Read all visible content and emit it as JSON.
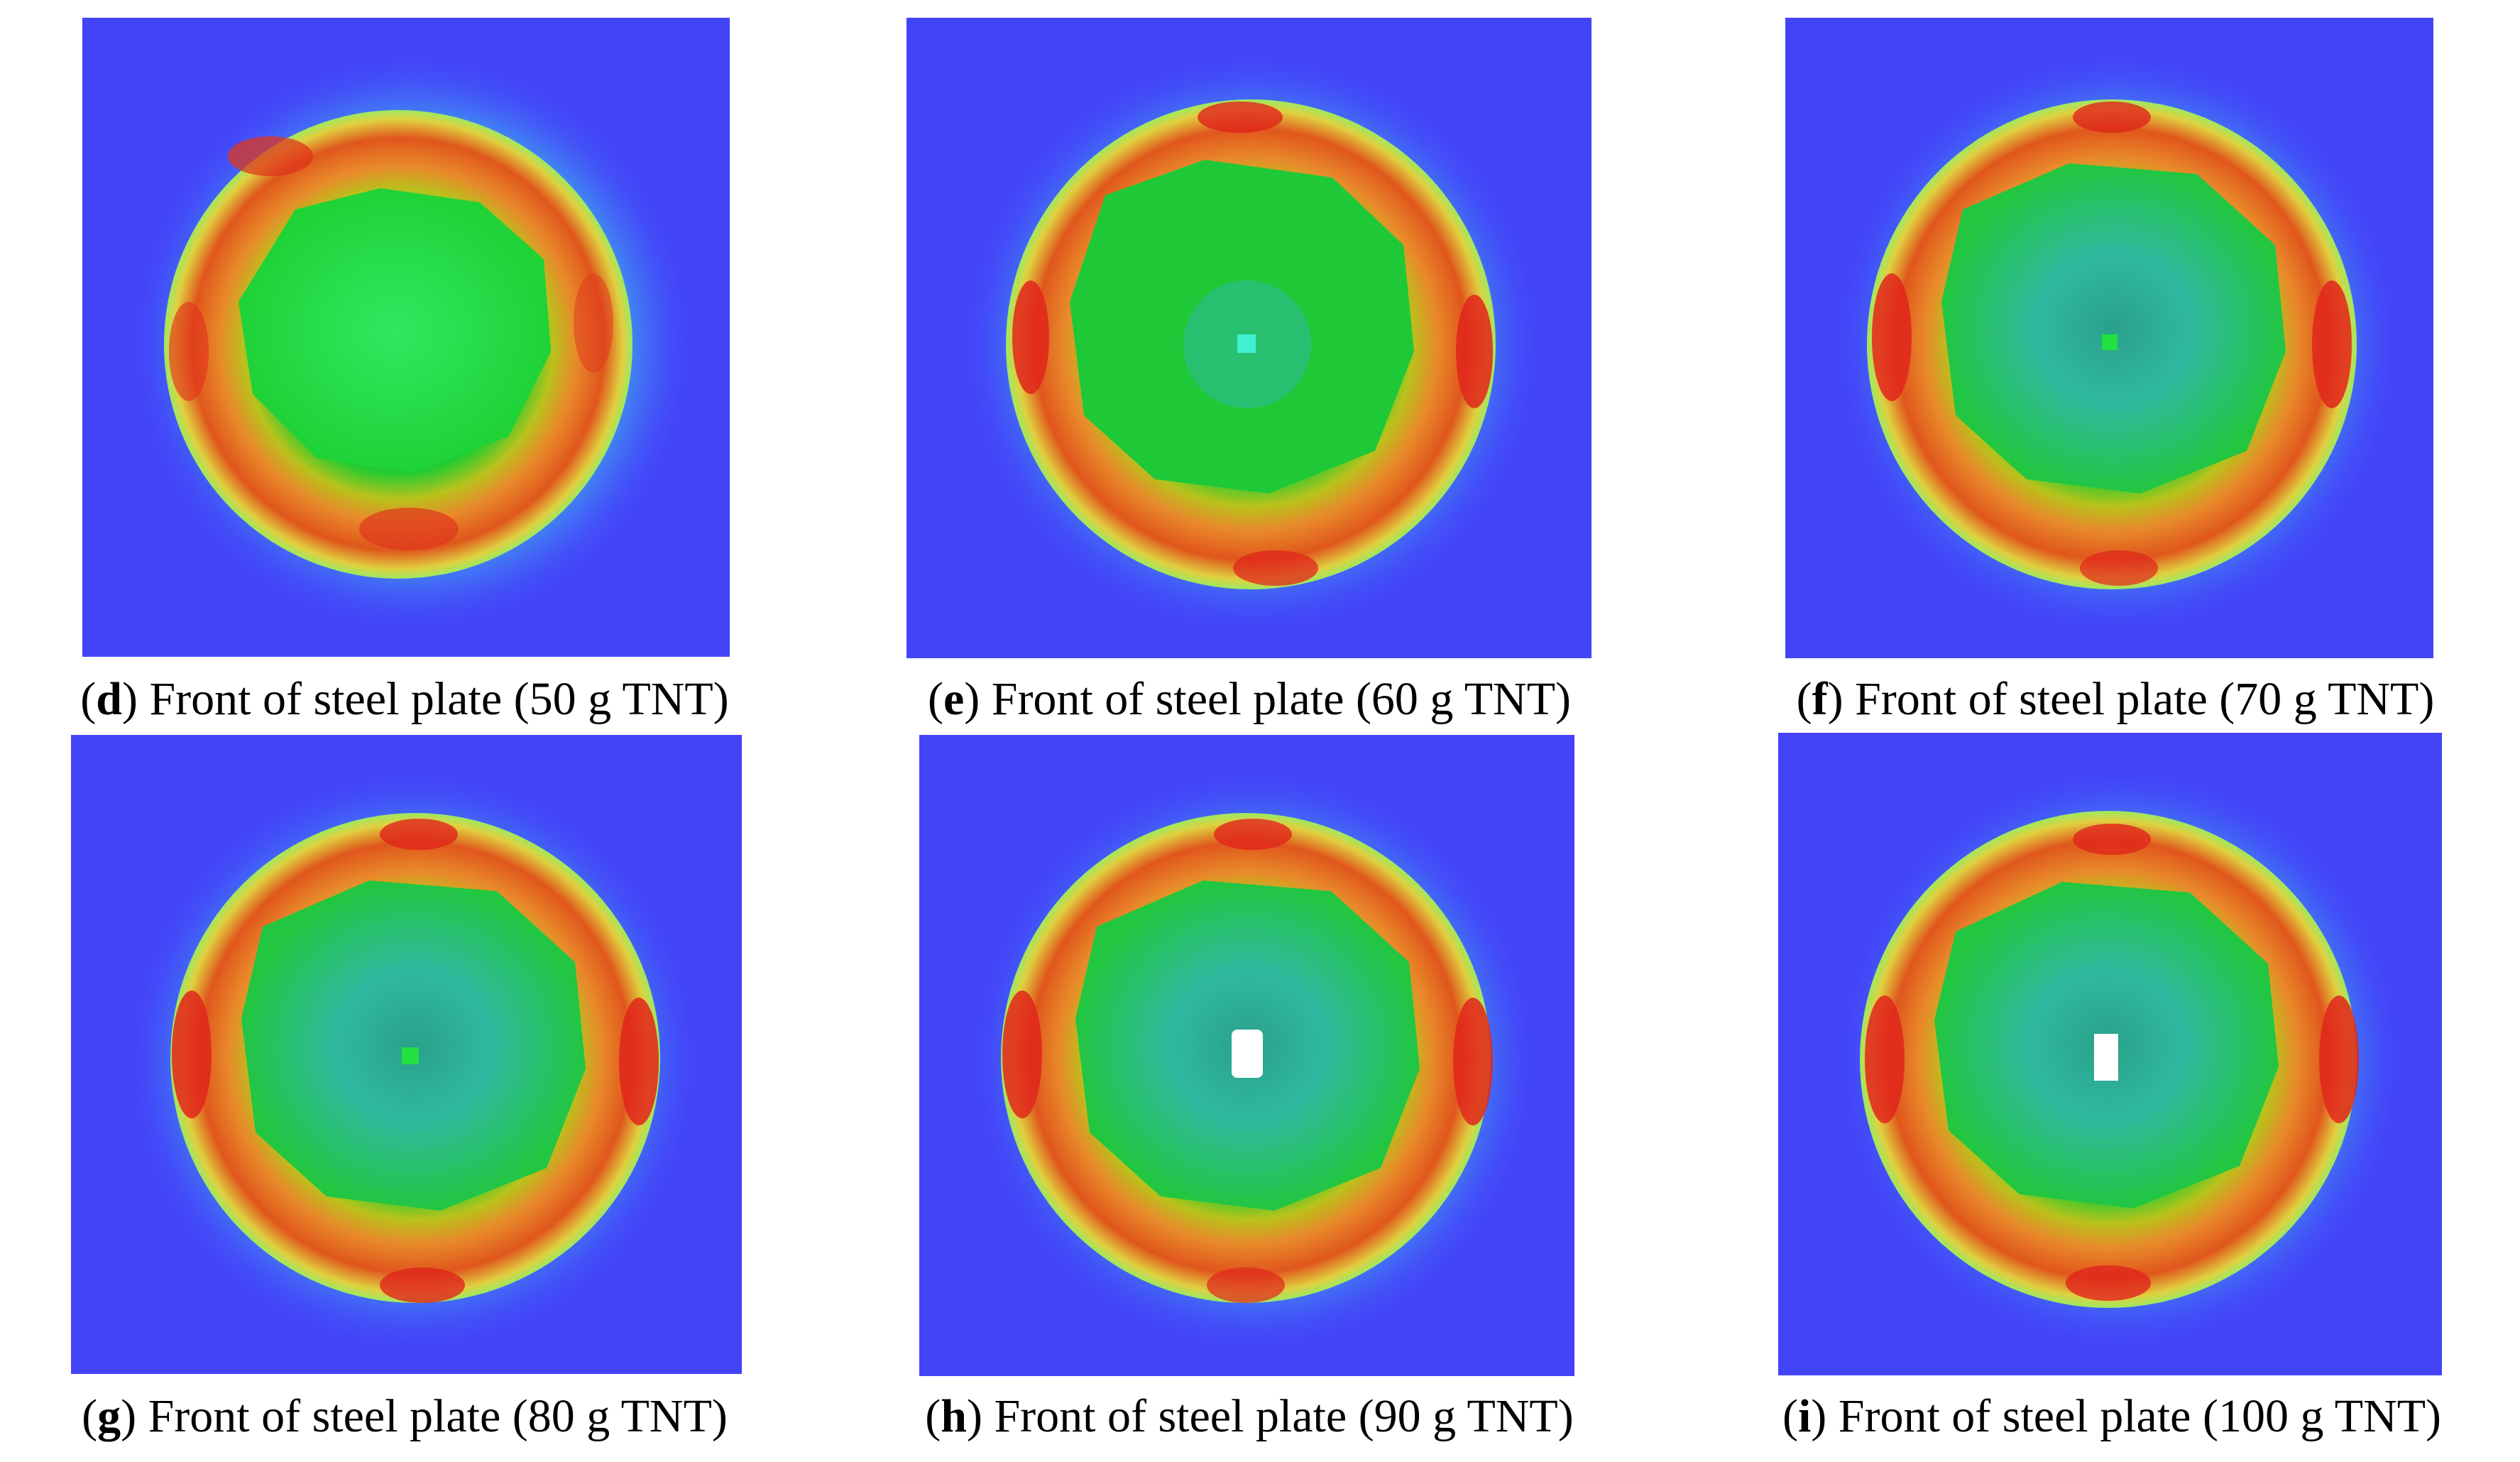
{
  "colors": {
    "background_blue": "#4343f8",
    "outer_ring_cyan": "#5ed8f2",
    "ring_red": "#e0261c",
    "ring_orange": "#e88a2a",
    "core_green": "#1fd236",
    "center_teal": "#2fb9a0",
    "hole_white": "#ffffff"
  },
  "panels": [
    {
      "id": "d",
      "letter": "d",
      "text": " Front of steel plate (50 g TNT)",
      "has_hole": false
    },
    {
      "id": "e",
      "letter": "e",
      "text": " Front of steel plate (60 g TNT)",
      "has_hole": false
    },
    {
      "id": "f",
      "letter": "f",
      "text": " Front of steel plate (70 g TNT)",
      "has_hole": false
    },
    {
      "id": "g",
      "letter": "g",
      "text": " Front of steel plate (80 g TNT)",
      "has_hole": false
    },
    {
      "id": "h",
      "letter": "h",
      "text": " Front of steel plate (90 g TNT)",
      "has_hole": true
    },
    {
      "id": "i",
      "letter": "i",
      "text": " Front of steel plate (100 g TNT)",
      "has_hole": true
    }
  ]
}
